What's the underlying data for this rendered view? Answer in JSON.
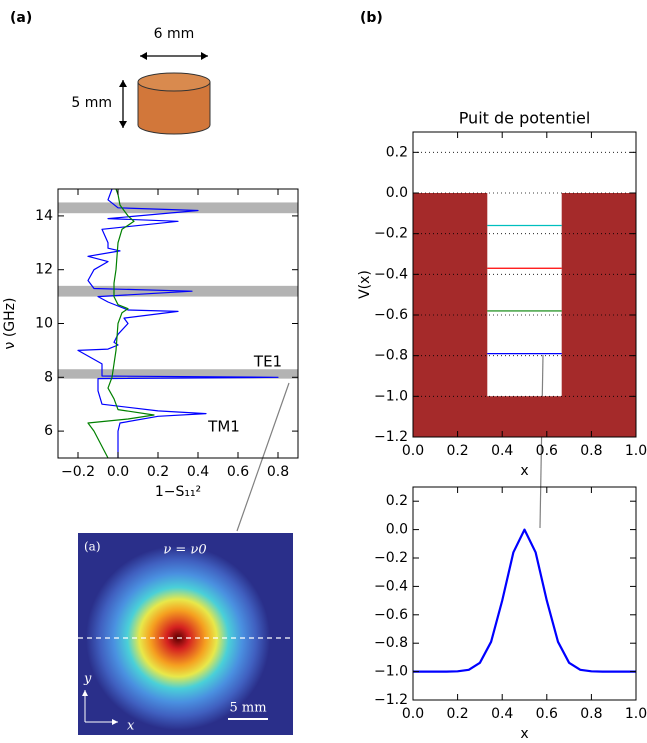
{
  "panel_labels": [
    "(a)",
    "(b)"
  ],
  "cylinder": {
    "diameter": "6 mm",
    "height": "5 mm"
  },
  "inset": {
    "label": "(a)",
    "title": "ν = ν0",
    "y_axis": "y",
    "x_axis": "x",
    "scale": "5 mm"
  },
  "chart_data": [
    {
      "type": "line",
      "xlabel": "1−S₁₁²",
      "ylabel": "ν (GHz)",
      "xlim": [
        -0.3,
        0.9
      ],
      "ylim": [
        5,
        15
      ],
      "xticks": [
        {
          "value": -0.2,
          "label": "−0.2"
        },
        {
          "value": 0,
          "label": "0.0"
        },
        0.2,
        0.4,
        0.6,
        0.8
      ],
      "yticks": [
        6,
        8,
        10,
        12,
        14
      ],
      "highlight_bands": [
        [
          7.95,
          8.3
        ],
        [
          11.0,
          11.4
        ],
        [
          14.1,
          14.5
        ]
      ],
      "band_color": "#b3b3b3",
      "annotations": [
        "TE1",
        "TM1"
      ],
      "series": [
        {
          "color": "#0000ff",
          "frequencies": [
            5.0,
            5.5,
            6.0,
            6.3,
            6.55,
            6.65,
            6.75,
            7.0,
            7.5,
            7.95,
            8.0,
            8.05,
            8.5,
            9.0,
            9.05,
            9.2,
            9.3,
            9.6,
            10.0,
            10.2,
            10.45,
            10.5,
            10.8,
            11.0,
            11.2,
            11.3,
            11.6,
            12.0,
            12.3,
            12.5,
            12.7,
            12.8,
            13.0,
            13.5,
            13.8,
            13.9,
            14.2,
            14.3,
            14.6,
            15.0
          ],
          "values": [
            0.0,
            0.0,
            0.0,
            0.01,
            0.2,
            0.44,
            0.2,
            -0.08,
            -0.1,
            -0.1,
            0.8,
            -0.08,
            -0.08,
            -0.2,
            -0.05,
            0.0,
            -0.02,
            0.0,
            0.05,
            0.03,
            0.3,
            0.05,
            -0.05,
            -0.1,
            0.37,
            -0.12,
            -0.15,
            -0.12,
            -0.05,
            -0.15,
            0.01,
            -0.05,
            -0.05,
            -0.08,
            0.3,
            -0.05,
            0.4,
            0.0,
            -0.05,
            -0.03
          ]
        },
        {
          "color": "#008000",
          "frequencies": [
            5.0,
            6.0,
            6.3,
            6.45,
            6.6,
            6.8,
            7.2,
            7.6,
            8.0,
            9.0,
            10.0,
            10.4,
            10.55,
            10.7,
            11.0,
            11.5,
            12.0,
            13.0,
            13.5,
            13.8,
            14.0,
            14.4,
            14.8,
            15.0
          ],
          "values": [
            -0.05,
            -0.12,
            -0.15,
            0.05,
            0.18,
            0.0,
            -0.02,
            -0.05,
            -0.03,
            -0.01,
            0.0,
            0.02,
            0.05,
            0.0,
            -0.02,
            -0.02,
            -0.01,
            0.0,
            0.02,
            0.08,
            0.05,
            0.01,
            0.0,
            -0.01
          ]
        }
      ]
    },
    {
      "type": "area",
      "title": "Puit de potentiel",
      "xlabel": "x",
      "ylabel": "V(x)",
      "xlim": [
        0,
        1
      ],
      "ylim": [
        -1.2,
        0.3
      ],
      "grid": true,
      "xticks": [
        {
          "value": 0,
          "label": "0.0"
        },
        0.2,
        0.4,
        0.6,
        0.8,
        {
          "value": 1,
          "label": "1.0"
        }
      ],
      "yticks": [
        {
          "value": -1.2,
          "label": "−1.2"
        },
        {
          "value": -1,
          "label": "−1.0"
        },
        {
          "value": -0.8,
          "label": "−0.8"
        },
        {
          "value": -0.6,
          "label": "−0.6"
        },
        {
          "value": -0.4,
          "label": "−0.4"
        },
        {
          "value": -0.2,
          "label": "−0.2"
        },
        {
          "value": 0,
          "label": "0.0"
        },
        0.2
      ],
      "series": [
        {
          "color": "#a52a2a",
          "x": [
            0,
            0.333,
            0.333,
            0.667,
            0.667,
            1
          ],
          "values": [
            0,
            0,
            -1,
            -1,
            0,
            0
          ]
        }
      ],
      "level_span": [
        0.333,
        0.667
      ],
      "energy_levels": [
        -0.16,
        -0.37,
        -0.58,
        -0.79
      ],
      "level_colors": [
        "#00bfbf",
        "#ff0000",
        "#008000",
        "#0000ff"
      ]
    },
    {
      "type": "line",
      "xlabel": "x",
      "xlim": [
        0,
        1
      ],
      "ylim": [
        -1.2,
        0.3
      ],
      "xticks": [
        {
          "value": 0,
          "label": "0.0"
        },
        0.2,
        0.4,
        0.6,
        0.8,
        {
          "value": 1,
          "label": "1.0"
        }
      ],
      "yticks": [
        {
          "value": -1.2,
          "label": "−1.2"
        },
        {
          "value": -1,
          "label": "−1.0"
        },
        {
          "value": -0.8,
          "label": "−0.8"
        },
        {
          "value": -0.6,
          "label": "−0.6"
        },
        {
          "value": -0.4,
          "label": "−0.4"
        },
        {
          "value": -0.2,
          "label": "−0.2"
        },
        {
          "value": 0,
          "label": "0.0"
        },
        0.2
      ],
      "x": [
        0,
        0.05,
        0.1,
        0.15,
        0.2,
        0.25,
        0.3,
        0.35,
        0.4,
        0.45,
        0.5,
        0.55,
        0.6,
        0.65,
        0.7,
        0.75,
        0.8,
        0.85,
        0.9,
        0.95,
        1
      ],
      "series": [
        {
          "color": "#0000ff",
          "values": [
            -1,
            -1,
            -1,
            -1,
            -0.998,
            -0.987,
            -0.938,
            -0.79,
            -0.5,
            -0.16,
            0,
            -0.16,
            -0.5,
            -0.79,
            -0.938,
            -0.987,
            -0.998,
            -1,
            -1,
            -1,
            -1
          ]
        }
      ]
    }
  ]
}
